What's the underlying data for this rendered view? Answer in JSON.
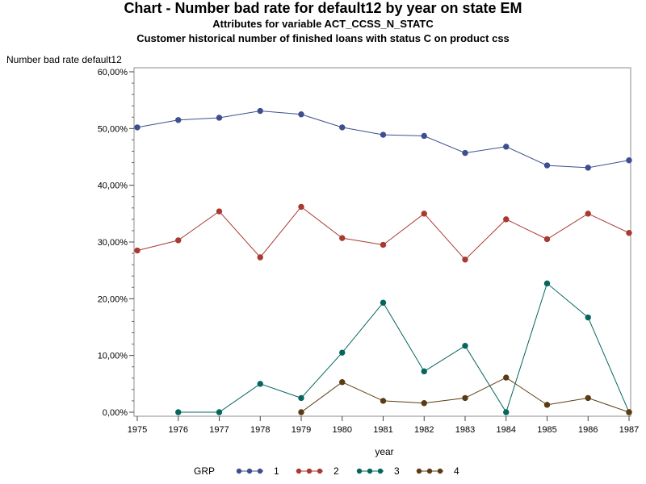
{
  "header": {
    "title": "Chart - Number bad rate for default12 by year on state EM",
    "subtitle1": "Attributes for variable ACT_CCSS_N_STATC",
    "subtitle2": "Customer historical number of finished loans with status C on product css"
  },
  "chart_data": {
    "type": "line",
    "title": "Chart - Number bad rate for default12 by year on state EM",
    "xlabel": "year",
    "ylabel": "Number bad rate default12",
    "x": [
      1975,
      1976,
      1977,
      1978,
      1979,
      1980,
      1981,
      1982,
      1983,
      1984,
      1985,
      1986,
      1987
    ],
    "x_tick_labels": [
      "1975",
      "1976",
      "1977",
      "1978",
      "1979",
      "1980",
      "1981",
      "1982",
      "1983",
      "1984",
      "1985",
      "1986",
      "1987"
    ],
    "ylim": [
      0,
      60
    ],
    "y_ticks": [
      0,
      10,
      20,
      30,
      40,
      50,
      60
    ],
    "y_tick_labels": [
      "0,00%",
      "10,00%",
      "20,00%",
      "30,00%",
      "40,00%",
      "50,00%",
      "60,00%"
    ],
    "grid": false,
    "legend": {
      "title": "GRP",
      "placement": "bottom"
    },
    "series": [
      {
        "name": "1",
        "color": "#3d4f8f",
        "x": [
          1975,
          1976,
          1977,
          1978,
          1979,
          1980,
          1981,
          1982,
          1983,
          1984,
          1985,
          1986,
          1987
        ],
        "values": [
          50.2,
          51.5,
          51.9,
          53.1,
          52.5,
          50.2,
          48.9,
          48.7,
          45.7,
          46.8,
          43.5,
          43.1,
          44.4
        ]
      },
      {
        "name": "2",
        "color": "#a83a32",
        "x": [
          1975,
          1976,
          1977,
          1978,
          1979,
          1980,
          1981,
          1982,
          1983,
          1984,
          1985,
          1986,
          1987
        ],
        "values": [
          28.5,
          30.3,
          35.4,
          27.3,
          36.2,
          30.7,
          29.5,
          35.0,
          26.9,
          34.0,
          30.5,
          35.0,
          31.6
        ]
      },
      {
        "name": "3",
        "color": "#05665e",
        "x": [
          1976,
          1977,
          1978,
          1979,
          1980,
          1981,
          1982,
          1983,
          1984,
          1985,
          1986,
          1987
        ],
        "values": [
          0.0,
          0.0,
          5.0,
          2.5,
          10.5,
          19.3,
          7.2,
          11.7,
          0.0,
          22.7,
          16.7,
          0.0
        ]
      },
      {
        "name": "4",
        "color": "#5b3b12",
        "x": [
          1979,
          1980,
          1981,
          1982,
          1983,
          1984,
          1985,
          1986,
          1987
        ],
        "values": [
          0.0,
          5.3,
          2.0,
          1.6,
          2.5,
          6.1,
          1.3,
          2.5,
          0.0
        ]
      }
    ]
  }
}
